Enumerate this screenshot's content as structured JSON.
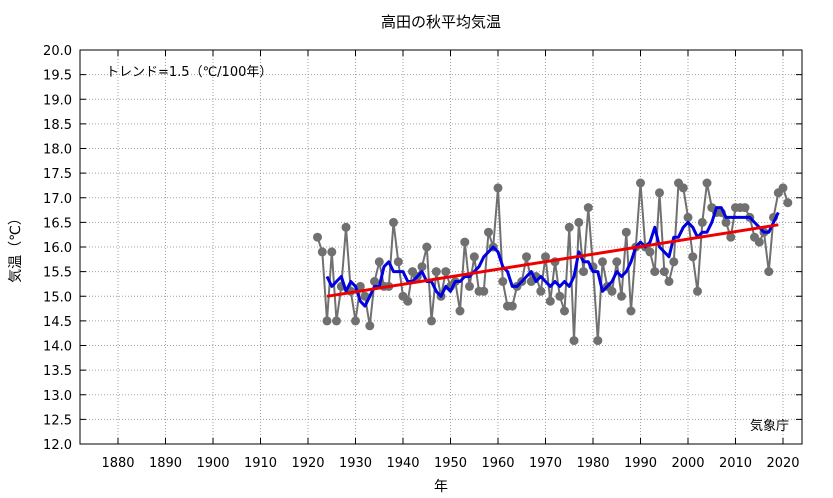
{
  "chart_data": {
    "type": "line",
    "title": "高田の秋平均気温",
    "xlabel": "年",
    "ylabel": "気温（℃）",
    "xlim": [
      1872,
      2024
    ],
    "ylim": [
      12.0,
      20.0
    ],
    "xticks": [
      1880,
      1890,
      1900,
      1910,
      1920,
      1930,
      1940,
      1950,
      1960,
      1970,
      1980,
      1990,
      2000,
      2010,
      2020
    ],
    "yticks": [
      12.0,
      12.5,
      13.0,
      13.5,
      14.0,
      14.5,
      15.0,
      15.5,
      16.0,
      16.5,
      17.0,
      17.5,
      18.0,
      18.5,
      19.0,
      19.5,
      20.0
    ],
    "grid": true,
    "trend_text": "トレンド=1.5（℃/100年）",
    "source_text": "気象庁",
    "colors": {
      "annual": "#707070",
      "moving_avg": "#0000e0",
      "trend": "#ee0000"
    },
    "series": [
      {
        "role": "annual",
        "x": [
          1922,
          1923,
          1924,
          1925,
          1926,
          1927,
          1928,
          1929,
          1930,
          1931,
          1932,
          1933,
          1934,
          1935,
          1936,
          1937,
          1938,
          1939,
          1940,
          1941,
          1942,
          1943,
          1944,
          1945,
          1946,
          1947,
          1948,
          1949,
          1950,
          1951,
          1952,
          1953,
          1954,
          1955,
          1956,
          1957,
          1958,
          1959,
          1960,
          1961,
          1962,
          1963,
          1964,
          1965,
          1966,
          1967,
          1968,
          1969,
          1970,
          1971,
          1972,
          1973,
          1974,
          1975,
          1976,
          1977,
          1978,
          1979,
          1980,
          1981,
          1982,
          1983,
          1984,
          1985,
          1986,
          1987,
          1988,
          1989,
          1990,
          1991,
          1992,
          1993,
          1994,
          1995,
          1996,
          1997,
          1998,
          1999,
          2000,
          2001,
          2002,
          2003,
          2004,
          2005,
          2006,
          2007,
          2008,
          2009,
          2010,
          2011,
          2012,
          2013,
          2014,
          2015,
          2016,
          2017,
          2018,
          2019,
          2020,
          2021
        ],
        "values": [
          16.2,
          15.9,
          14.5,
          15.9,
          14.5,
          15.2,
          16.4,
          15.1,
          14.5,
          15.2,
          15.0,
          14.4,
          15.3,
          15.7,
          15.2,
          15.2,
          16.5,
          15.7,
          15.0,
          14.9,
          15.5,
          15.4,
          15.6,
          16.0,
          14.5,
          15.5,
          15.0,
          15.5,
          15.2,
          15.3,
          14.7,
          16.1,
          15.2,
          15.8,
          15.1,
          15.1,
          16.3,
          16.0,
          17.2,
          15.3,
          14.8,
          14.8,
          15.2,
          15.3,
          15.8,
          15.3,
          15.4,
          15.1,
          15.8,
          14.9,
          15.7,
          15.0,
          14.7,
          16.4,
          14.1,
          16.5,
          15.5,
          16.8,
          15.6,
          14.1,
          15.7,
          15.2,
          15.1,
          15.7,
          15.0,
          16.3,
          14.7,
          16.0,
          17.3,
          16.0,
          15.9,
          15.5,
          17.1,
          15.5,
          15.3,
          15.7,
          17.3,
          17.2,
          16.6,
          15.8,
          15.1,
          16.5,
          17.3,
          16.8,
          16.7,
          16.7,
          16.5,
          16.2,
          16.8,
          16.8,
          16.8,
          16.6,
          16.2,
          16.1,
          16.3,
          15.5,
          16.6,
          17.1,
          17.2,
          16.9
        ]
      },
      {
        "role": "moving_avg",
        "x": [
          1924,
          1925,
          1926,
          1927,
          1928,
          1929,
          1930,
          1931,
          1932,
          1933,
          1934,
          1935,
          1936,
          1937,
          1938,
          1939,
          1940,
          1941,
          1942,
          1943,
          1944,
          1945,
          1946,
          1947,
          1948,
          1949,
          1950,
          1951,
          1952,
          1953,
          1954,
          1955,
          1956,
          1957,
          1958,
          1959,
          1960,
          1961,
          1962,
          1963,
          1964,
          1965,
          1966,
          1967,
          1968,
          1969,
          1970,
          1971,
          1972,
          1973,
          1974,
          1975,
          1976,
          1977,
          1978,
          1979,
          1980,
          1981,
          1982,
          1983,
          1984,
          1985,
          1986,
          1987,
          1988,
          1989,
          1990,
          1991,
          1992,
          1993,
          1994,
          1995,
          1996,
          1997,
          1998,
          1999,
          2000,
          2001,
          2002,
          2003,
          2004,
          2005,
          2006,
          2007,
          2008,
          2009,
          2010,
          2011,
          2012,
          2013,
          2014,
          2015,
          2016,
          2017,
          2018,
          2019
        ],
        "values": [
          15.4,
          15.2,
          15.3,
          15.4,
          15.1,
          15.3,
          15.2,
          14.9,
          14.8,
          15.0,
          15.2,
          15.2,
          15.6,
          15.7,
          15.5,
          15.5,
          15.5,
          15.3,
          15.3,
          15.4,
          15.5,
          15.3,
          15.3,
          15.1,
          15.0,
          15.2,
          15.1,
          15.3,
          15.3,
          15.4,
          15.4,
          15.5,
          15.6,
          15.8,
          15.9,
          16.0,
          15.9,
          15.6,
          15.5,
          15.2,
          15.2,
          15.3,
          15.4,
          15.5,
          15.3,
          15.4,
          15.3,
          15.2,
          15.3,
          15.2,
          15.3,
          15.2,
          15.4,
          15.9,
          15.7,
          15.7,
          15.5,
          15.5,
          15.1,
          15.2,
          15.3,
          15.5,
          15.4,
          15.5,
          15.7,
          16.0,
          16.1,
          16.0,
          16.1,
          16.4,
          16.0,
          15.9,
          15.8,
          16.2,
          16.2,
          16.4,
          16.5,
          16.4,
          16.2,
          16.3,
          16.3,
          16.5,
          16.8,
          16.8,
          16.6,
          16.6,
          16.6,
          16.6,
          16.6,
          16.6,
          16.5,
          16.4,
          16.3,
          16.3,
          16.5,
          16.7
        ]
      },
      {
        "role": "trend",
        "x": [
          1924,
          2019
        ],
        "values": [
          15.0,
          16.45
        ]
      }
    ]
  }
}
